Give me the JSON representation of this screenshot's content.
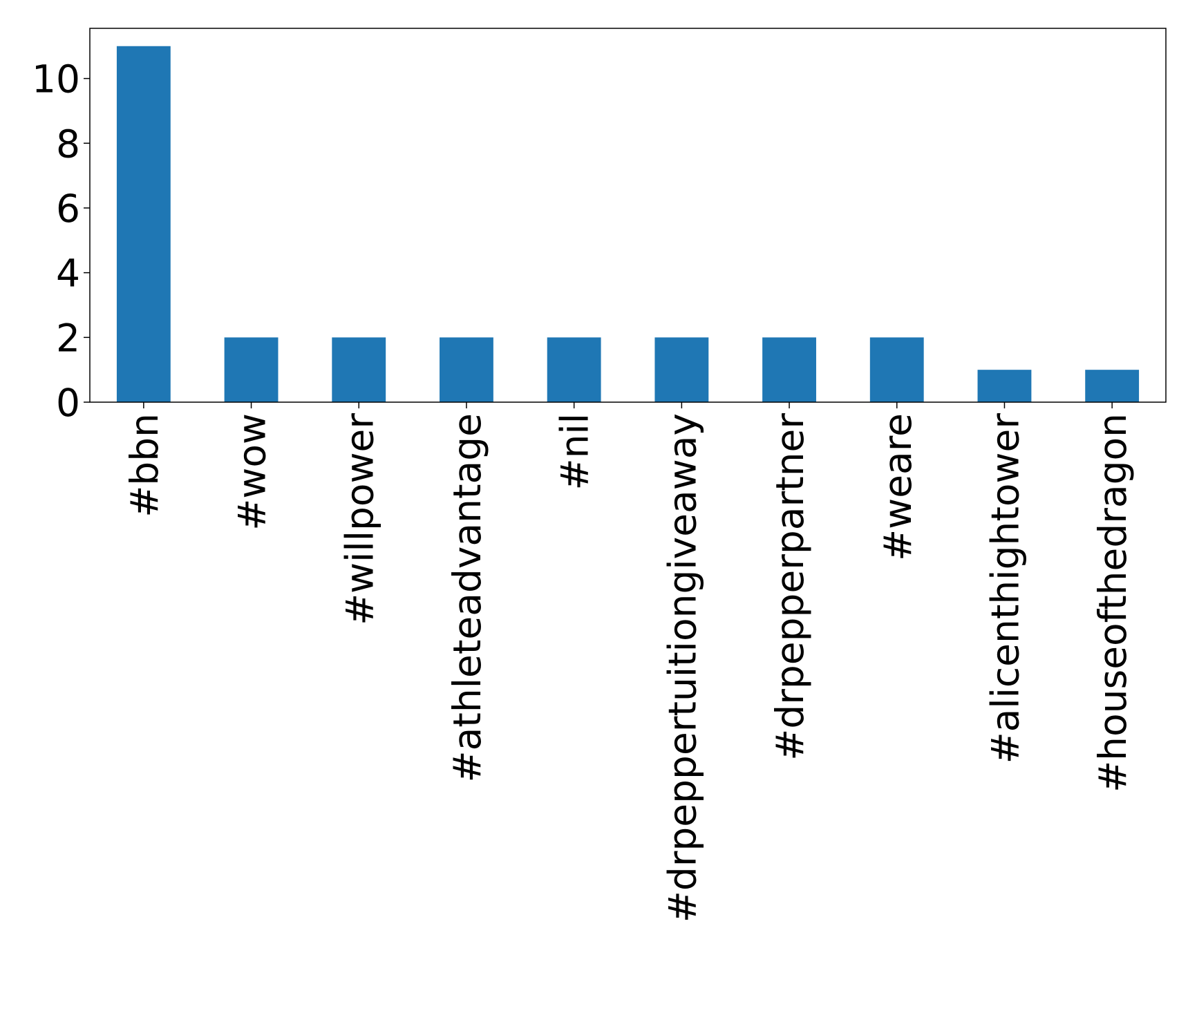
{
  "chart_data": {
    "type": "bar",
    "categories": [
      "#bbn",
      "#wow",
      "#willpower",
      "#athleteadvantage",
      "#nil",
      "#drpeppertuitiongiveaway",
      "#drpepperpartner",
      "#weare",
      "#alicenthightower",
      "#houseofthedragon"
    ],
    "values": [
      11,
      2,
      2,
      2,
      2,
      2,
      2,
      2,
      1,
      1
    ],
    "color": "#1f77b4",
    "ylim": [
      0,
      11.55
    ],
    "yticks": [
      0,
      2,
      4,
      6,
      8,
      10
    ],
    "grid": false
  }
}
